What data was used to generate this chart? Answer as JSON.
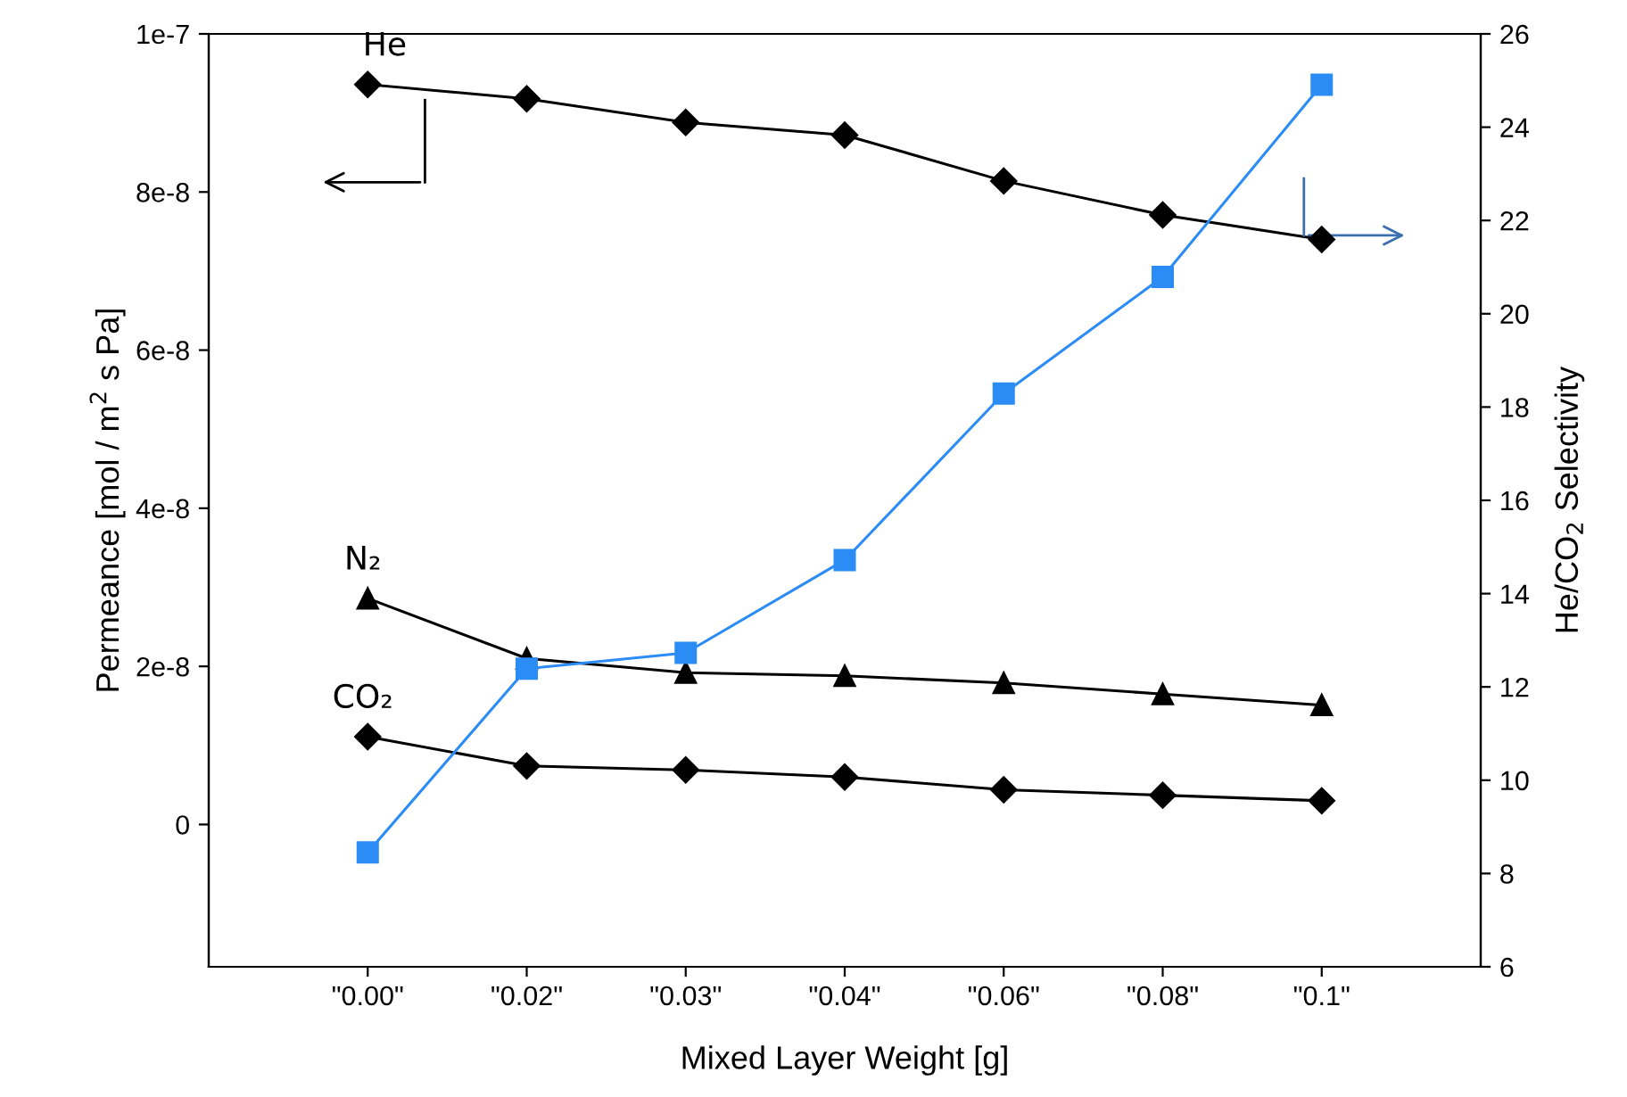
{
  "chart_data": {
    "type": "line",
    "xlabel": "Mixed Layer Weight [g]",
    "ylabel": "Permeance [mol / m$^{2}$ s Pa]",
    "y2label": "He/CO$_{2}$ Selectivity",
    "categories": [
      "\"0.00\"",
      "\"0.02\"",
      "\"0.03\"",
      "\"0.04\"",
      "\"0.06\"",
      "\"0.08\"",
      "\"0.1\""
    ],
    "series": [
      {
        "name": "He",
        "color": "#000000",
        "marker": "diamond",
        "values": [
          9.36e-08,
          9.18e-08,
          8.88e-08,
          8.72e-08,
          8.14e-08,
          7.71e-08,
          7.4e-08
        ]
      },
      {
        "name": "N₂",
        "color": "#000000",
        "marker": "triangle",
        "values": [
          2.86e-08,
          2.1e-08,
          1.92e-08,
          1.88e-08,
          1.79e-08,
          1.65e-08,
          1.51e-08
        ]
      },
      {
        "name": "CO₂",
        "color": "#000000",
        "marker": "diamond",
        "values": [
          1.11e-08,
          7.4e-09,
          6.9e-09,
          6e-09,
          4.4e-09,
          3.7e-09,
          3e-09
        ]
      },
      {
        "color": "#2b8cf5",
        "marker": "square",
        "axis": "y2",
        "values": [
          8.45,
          12.39,
          12.73,
          14.72,
          18.29,
          20.79,
          24.91
        ]
      }
    ],
    "ylim": [
      -1.8e-08,
      1e-07
    ],
    "yticks": [
      0,
      {
        "value": 2e-08,
        "label": "2e-8"
      },
      {
        "value": 4e-08,
        "label": "4e-8"
      },
      {
        "value": 6e-08,
        "label": "6e-8"
      },
      {
        "value": 8e-08,
        "label": "8e-8"
      },
      {
        "value": 1e-07,
        "label": "1e-7"
      }
    ],
    "y2lim": [
      6,
      26
    ],
    "y2ticks": [
      6,
      8,
      10,
      12,
      14,
      16,
      18,
      20,
      22,
      24,
      26
    ],
    "grid": false,
    "legend": false
  }
}
